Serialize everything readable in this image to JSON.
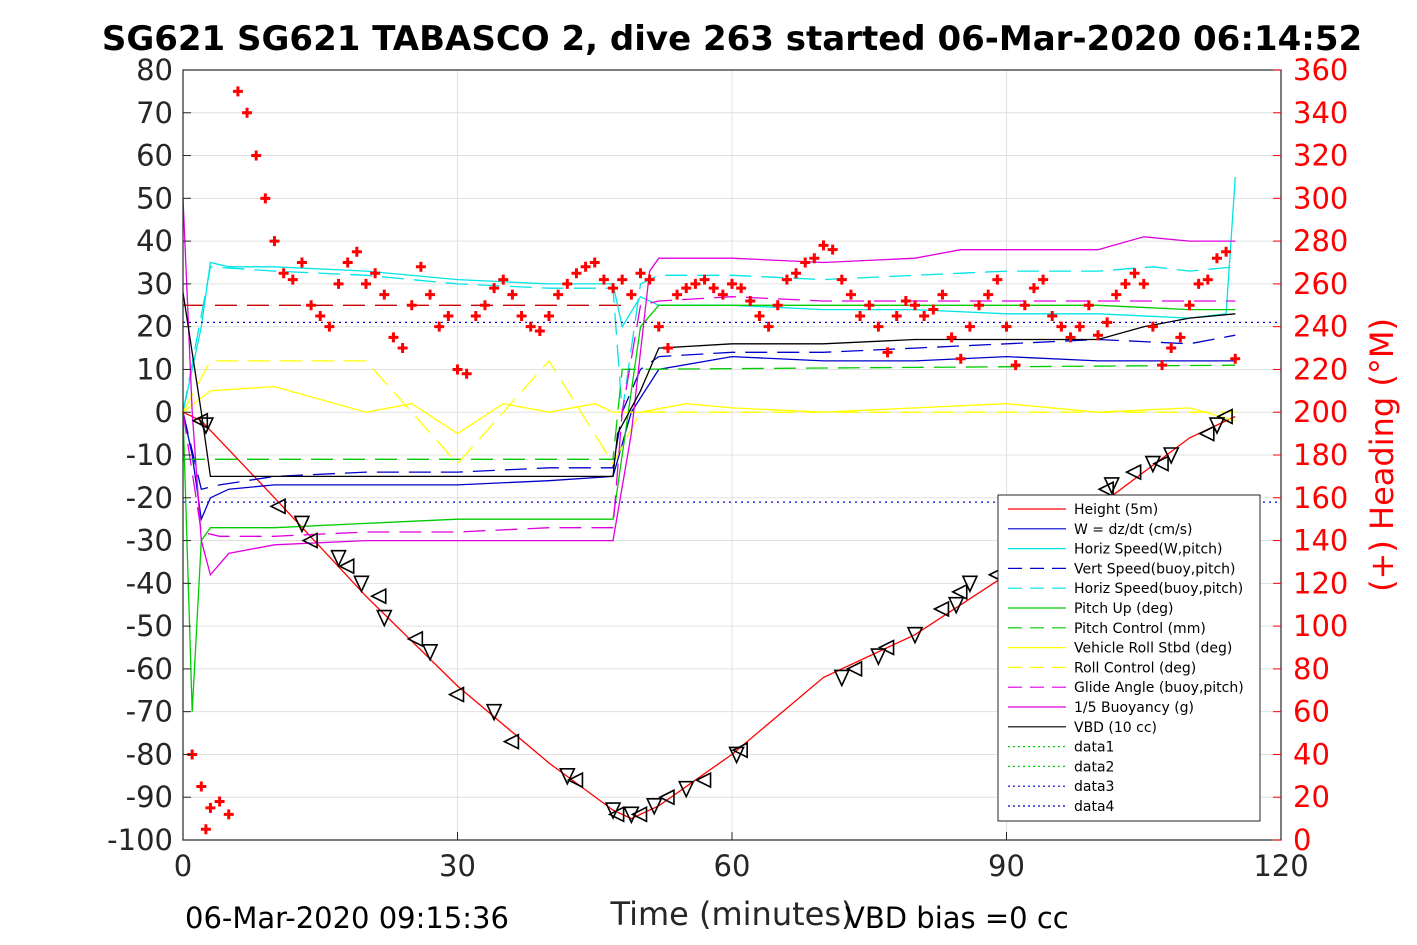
{
  "chart_data": {
    "type": "line",
    "title": "SG621 SG621 TABASCO 2, dive 263 started 06-Mar-2020 06:14:52",
    "xlabel": "Time (minutes)",
    "ylabel_right": "(+) Heading (°M)",
    "xlim": [
      0,
      120
    ],
    "ylim": [
      -100,
      80
    ],
    "ylim_right": [
      0,
      360
    ],
    "x_ticks": [
      0,
      30,
      60,
      90,
      120
    ],
    "y_ticks": [
      80,
      70,
      60,
      50,
      40,
      30,
      20,
      10,
      0,
      -10,
      -20,
      -30,
      -40,
      -50,
      -60,
      -70,
      -80,
      -90,
      -100
    ],
    "y_ticks_right": [
      360,
      340,
      320,
      300,
      280,
      260,
      240,
      220,
      200,
      180,
      160,
      140,
      120,
      100,
      80,
      60,
      40,
      20,
      0
    ],
    "grid": true,
    "legend_position": "lower-right",
    "footer_left": "06-Mar-2020 09:15:36",
    "footer_right": "VBD bias =0 cc",
    "series": [
      {
        "name": "Height (5m)",
        "color": "#ff0000",
        "style": "solid",
        "x": [
          0,
          2,
          10,
          20,
          30,
          40,
          47,
          49,
          52,
          60,
          70,
          80,
          90,
          100,
          110,
          115
        ],
        "y": [
          0,
          -2,
          -20,
          -43,
          -64,
          -82,
          -93,
          -95,
          -92,
          -80,
          -62,
          -52,
          -38,
          -22,
          -6,
          -1
        ]
      },
      {
        "name": "W = dz/dt (cm/s)",
        "color": "#0000cc",
        "style": "solid",
        "x": [
          0,
          1,
          2,
          3,
          5,
          10,
          20,
          30,
          40,
          47,
          49,
          52,
          60,
          70,
          80,
          90,
          100,
          110,
          115
        ],
        "y": [
          0,
          -10,
          -25,
          -20,
          -18,
          -17,
          -17,
          -17,
          -16,
          -15,
          0,
          10,
          13,
          12,
          12,
          13,
          12,
          12,
          12
        ]
      },
      {
        "name": "Horiz Speed(W,pitch)",
        "color": "#00e5e5",
        "style": "solid",
        "x": [
          0,
          2,
          3,
          5,
          10,
          20,
          30,
          40,
          47,
          48,
          50,
          52,
          60,
          70,
          80,
          90,
          100,
          110,
          114,
          115
        ],
        "y": [
          0,
          20,
          35,
          34,
          34,
          33,
          31,
          30,
          30,
          20,
          27,
          25,
          25,
          24,
          24,
          23,
          23,
          22,
          23,
          55
        ]
      },
      {
        "name": "Vert Speed(buoy,pitch)",
        "color": "#0000cc",
        "style": "dashed",
        "x": [
          0,
          2,
          4,
          10,
          20,
          30,
          40,
          47,
          48,
          50,
          52,
          60,
          70,
          80,
          90,
          100,
          110,
          115
        ],
        "y": [
          0,
          -18,
          -17,
          -15,
          -14,
          -14,
          -13,
          -13,
          0,
          10,
          13,
          14,
          14,
          15,
          16,
          17,
          16,
          18
        ]
      },
      {
        "name": "Horiz Speed(buoy,pitch)",
        "color": "#00e5e5",
        "style": "dashed",
        "x": [
          0,
          3,
          10,
          20,
          30,
          40,
          47,
          48,
          50,
          52,
          60,
          70,
          80,
          90,
          100,
          106,
          110,
          115
        ],
        "y": [
          0,
          34,
          33,
          32,
          30,
          29,
          29,
          0,
          30,
          32,
          32,
          31,
          32,
          33,
          33,
          34,
          33,
          34
        ]
      },
      {
        "name": "Pitch Up (deg)",
        "color": "#00cc00",
        "style": "solid",
        "x": [
          0,
          1,
          2,
          3,
          5,
          10,
          20,
          30,
          40,
          47,
          48,
          50,
          52,
          60,
          70,
          80,
          90,
          100,
          110,
          115
        ],
        "y": [
          0,
          -70,
          -30,
          -27,
          -27,
          -27,
          -26,
          -25,
          -25,
          -25,
          -10,
          20,
          25,
          25,
          25,
          25,
          25,
          25,
          24,
          24
        ]
      },
      {
        "name": "Pitch Control (mm)",
        "color": "#00cc00",
        "style": "dashed",
        "x": [
          0,
          47,
          48,
          115
        ],
        "y": [
          -11,
          -11,
          10,
          11
        ]
      },
      {
        "name": "Vehicle Roll Stbd (deg)",
        "color": "#ffff00",
        "style": "solid",
        "x": [
          0,
          3,
          10,
          20,
          25,
          30,
          35,
          40,
          45,
          47,
          50,
          55,
          60,
          70,
          80,
          90,
          100,
          110,
          115
        ],
        "y": [
          0,
          5,
          6,
          0,
          2,
          -5,
          2,
          0,
          2,
          0,
          0,
          2,
          1,
          0,
          1,
          2,
          0,
          1,
          -2
        ]
      },
      {
        "name": "Roll Control (deg)",
        "color": "#ffff00",
        "style": "dashed",
        "x": [
          0,
          3,
          10,
          20,
          30,
          40,
          47,
          50,
          60,
          70,
          80,
          90,
          100,
          110,
          115
        ],
        "y": [
          0,
          12,
          12,
          12,
          -12,
          12,
          -12,
          0,
          0,
          0,
          0,
          0,
          0,
          0,
          0
        ]
      },
      {
        "name": "Glide Angle (buoy,pitch)",
        "color": "#e000e0",
        "style": "dashed",
        "x": [
          0,
          2,
          4,
          10,
          20,
          30,
          40,
          47,
          48,
          50,
          52,
          60,
          70,
          80,
          90,
          100,
          110,
          115
        ],
        "y": [
          0,
          -28,
          -29,
          -29,
          -28,
          -28,
          -27,
          -27,
          0,
          25,
          26,
          27,
          26,
          26,
          26,
          26,
          26,
          26
        ]
      },
      {
        "name": "1/5 Buoyancy (g)",
        "color": "#e000e0",
        "style": "solid",
        "x": [
          0,
          1,
          2,
          3,
          5,
          10,
          20,
          30,
          40,
          47,
          49,
          51,
          52,
          60,
          70,
          80,
          85,
          90,
          100,
          105,
          110,
          115
        ],
        "y": [
          50,
          0,
          -30,
          -38,
          -33,
          -31,
          -30,
          -30,
          -30,
          -30,
          -5,
          33,
          36,
          36,
          35,
          36,
          38,
          38,
          38,
          41,
          40,
          40
        ]
      },
      {
        "name": "VBD (10 cc)",
        "color": "#000000",
        "style": "solid",
        "x": [
          0,
          2,
          3,
          47,
          47.5,
          50,
          52,
          60,
          70,
          80,
          90,
          100,
          105,
          110,
          115
        ],
        "y": [
          28,
          0,
          -15,
          -15,
          -5,
          5,
          15,
          16,
          16,
          17,
          17,
          17,
          20,
          22,
          23
        ]
      },
      {
        "name": "data1",
        "color": "#00cc00",
        "style": "dotted",
        "x": [],
        "y": []
      },
      {
        "name": "data2",
        "color": "#00cc00",
        "style": "dotted",
        "x": [],
        "y": []
      },
      {
        "name": "data3",
        "color": "#0000cc",
        "style": "dotted",
        "x": [
          0,
          120
        ],
        "y": [
          21,
          21
        ]
      },
      {
        "name": "data4",
        "color": "#0000cc",
        "style": "dotted",
        "x": [
          0,
          120
        ],
        "y": [
          -21,
          -21
        ]
      }
    ],
    "extra_lines": [
      {
        "color": "#cc0000",
        "style": "dashed",
        "x": [
          0,
          48
        ],
        "y": [
          25,
          25
        ]
      }
    ],
    "heading": {
      "color": "#ff0000",
      "marker": "+",
      "axis": "right",
      "x": [
        1,
        2,
        2.5,
        3,
        4,
        5,
        6,
        7,
        8,
        9,
        10,
        11,
        12,
        13,
        14,
        15,
        16,
        17,
        18,
        19,
        20,
        21,
        22,
        23,
        24,
        25,
        26,
        27,
        28,
        29,
        30,
        31,
        32,
        33,
        34,
        35,
        36,
        37,
        38,
        39,
        40,
        41,
        42,
        43,
        44,
        45,
        46,
        47,
        48,
        49,
        50,
        51,
        52,
        53,
        54,
        55,
        56,
        57,
        58,
        59,
        60,
        61,
        62,
        63,
        64,
        65,
        66,
        67,
        68,
        69,
        70,
        71,
        72,
        73,
        74,
        75,
        76,
        77,
        78,
        79,
        80,
        81,
        82,
        83,
        84,
        85,
        86,
        87,
        88,
        89,
        90,
        91,
        92,
        93,
        94,
        95,
        96,
        97,
        98,
        99,
        100,
        101,
        102,
        103,
        104,
        105,
        106,
        107,
        108,
        109,
        110,
        111,
        112,
        113,
        114,
        115
      ],
      "y": [
        40,
        25,
        5,
        15,
        18,
        12,
        350,
        340,
        320,
        300,
        280,
        265,
        262,
        270,
        250,
        245,
        240,
        260,
        270,
        275,
        260,
        265,
        255,
        235,
        230,
        250,
        268,
        255,
        240,
        245,
        220,
        218,
        245,
        250,
        258,
        262,
        255,
        245,
        240,
        238,
        245,
        255,
        260,
        265,
        268,
        270,
        262,
        258,
        262,
        255,
        265,
        262,
        240,
        230,
        255,
        258,
        260,
        262,
        258,
        255,
        260,
        258,
        252,
        245,
        240,
        250,
        262,
        265,
        270,
        272,
        278,
        276,
        262,
        255,
        245,
        250,
        240,
        228,
        245,
        252,
        250,
        245,
        248,
        255,
        235,
        225,
        240,
        250,
        255,
        262,
        240,
        222,
        250,
        258,
        262,
        245,
        240,
        235,
        240,
        250,
        236,
        242,
        255,
        260,
        265,
        260,
        240,
        222,
        230,
        235,
        250,
        260,
        262,
        272,
        275,
        225
      ]
    },
    "waypoint_markers": {
      "color": "#000000",
      "marker": "triangle-outline",
      "x": [
        2,
        2.5,
        10.5,
        13,
        14,
        17,
        18,
        19.5,
        21.5,
        22,
        25.5,
        27,
        30,
        34,
        36,
        42,
        43,
        47,
        47.5,
        49,
        50,
        51.5,
        53,
        55,
        57,
        60.5,
        61,
        72,
        73.5,
        76,
        77,
        80,
        83,
        84.5,
        85,
        86,
        89,
        91,
        101,
        101.5,
        104,
        106,
        107,
        108,
        112,
        113,
        114
      ],
      "y": [
        -2,
        -3,
        -22,
        -26,
        -30,
        -34,
        -36,
        -40,
        -43,
        -48,
        -53,
        -56,
        -66,
        -70,
        -77,
        -85,
        -86,
        -93,
        -94,
        -94,
        -94,
        -92,
        -90,
        -88,
        -86,
        -80,
        -79,
        -62,
        -60,
        -57,
        -55,
        -52,
        -46,
        -45,
        -42,
        -40,
        -38,
        -35,
        -18,
        -17,
        -14,
        -12,
        -12,
        -10,
        -5,
        -3,
        -1
      ]
    }
  },
  "legend": {
    "entries": [
      "Height (5m)",
      "W = dz/dt (cm/s)",
      "Horiz Speed(W,pitch)",
      "Vert Speed(buoy,pitch)",
      "Horiz Speed(buoy,pitch)",
      "Pitch Up (deg)",
      "Pitch Control (mm)",
      "Vehicle Roll Stbd (deg)",
      "Roll Control (deg)",
      "Glide Angle (buoy,pitch)",
      "1/5 Buoyancy (g)",
      "VBD (10 cc)",
      "data1",
      "data2",
      "data3",
      "data4"
    ]
  }
}
